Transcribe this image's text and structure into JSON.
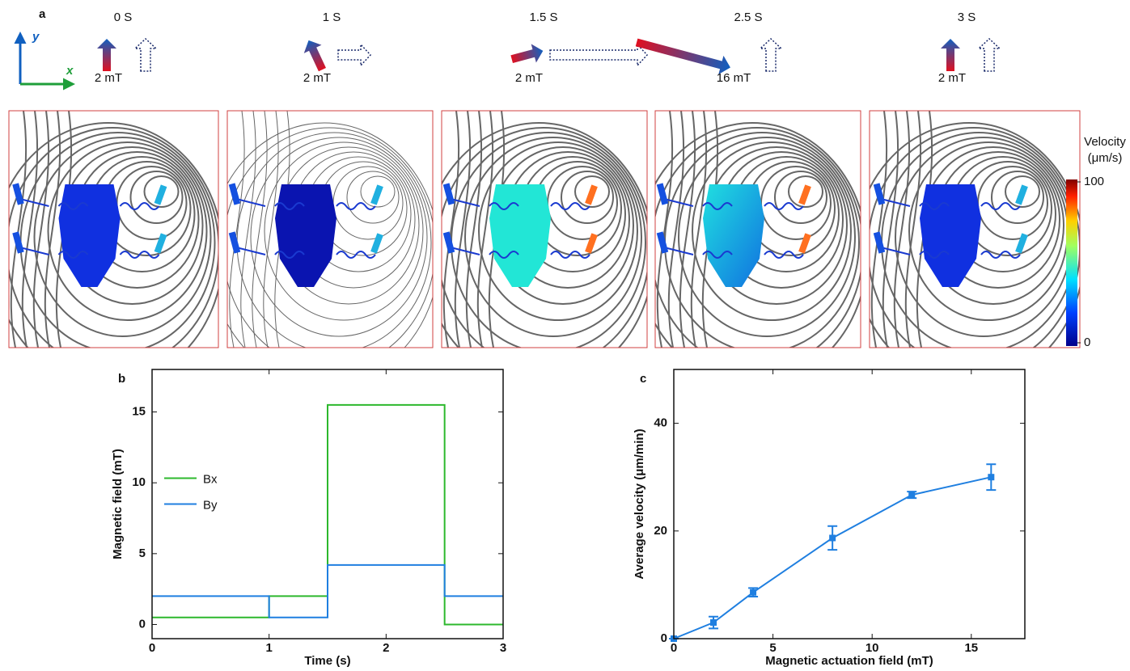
{
  "panel_a": {
    "label": "a",
    "axes": {
      "x": "x",
      "y": "y"
    },
    "frames": [
      {
        "time": "0 S",
        "field": "2 mT"
      },
      {
        "time": "1 S",
        "field": "2 mT"
      },
      {
        "time": "1.5 S",
        "field": "2 mT"
      },
      {
        "time": "2.5 S",
        "field": "16 mT"
      },
      {
        "time": "3 S",
        "field": "2 mT"
      }
    ],
    "colorbar": {
      "title": [
        "Velocity",
        "(μm/s)"
      ],
      "lim": [
        0,
        100
      ],
      "ticks": [
        0,
        100
      ]
    }
  },
  "chart_data": [
    {
      "type": "line",
      "label": "b",
      "x_label": "Time (s)",
      "y_label": "Magnetic field (mT)",
      "x": [
        0,
        1,
        1,
        1.5,
        1.5,
        2.5,
        2.5,
        3
      ],
      "series": [
        {
          "name": "Bx",
          "color": "#2db82d",
          "values": [
            0.5,
            0.5,
            2,
            2,
            15.5,
            15.5,
            0,
            0
          ]
        },
        {
          "name": "By",
          "color": "#1f7fe0",
          "values": [
            2,
            2,
            0.5,
            0.5,
            4.2,
            4.2,
            2,
            2
          ]
        }
      ],
      "xlim": [
        0,
        3
      ],
      "xticks": [
        0,
        1,
        2,
        3
      ],
      "ylim": [
        -1,
        18
      ],
      "yticks": [
        0,
        5,
        10,
        15
      ],
      "legend": "center left"
    },
    {
      "type": "errorline",
      "label": "c",
      "x_label": "Magnetic actuation field (mT)",
      "y_label": "Average velocity (μm/min)",
      "x": [
        0,
        2,
        4,
        8,
        12,
        16
      ],
      "series": [
        {
          "color": "#1f7fe0",
          "values": [
            0,
            3,
            8.6,
            18.7,
            26.7,
            30
          ],
          "errors": [
            0,
            1.1,
            0.8,
            2.2,
            0.6,
            2.4
          ]
        }
      ],
      "xlim": [
        0,
        17.7
      ],
      "xticks": [
        0,
        5,
        10,
        15
      ],
      "ylim": [
        0,
        50
      ],
      "yticks": [
        0,
        20,
        40
      ]
    }
  ]
}
